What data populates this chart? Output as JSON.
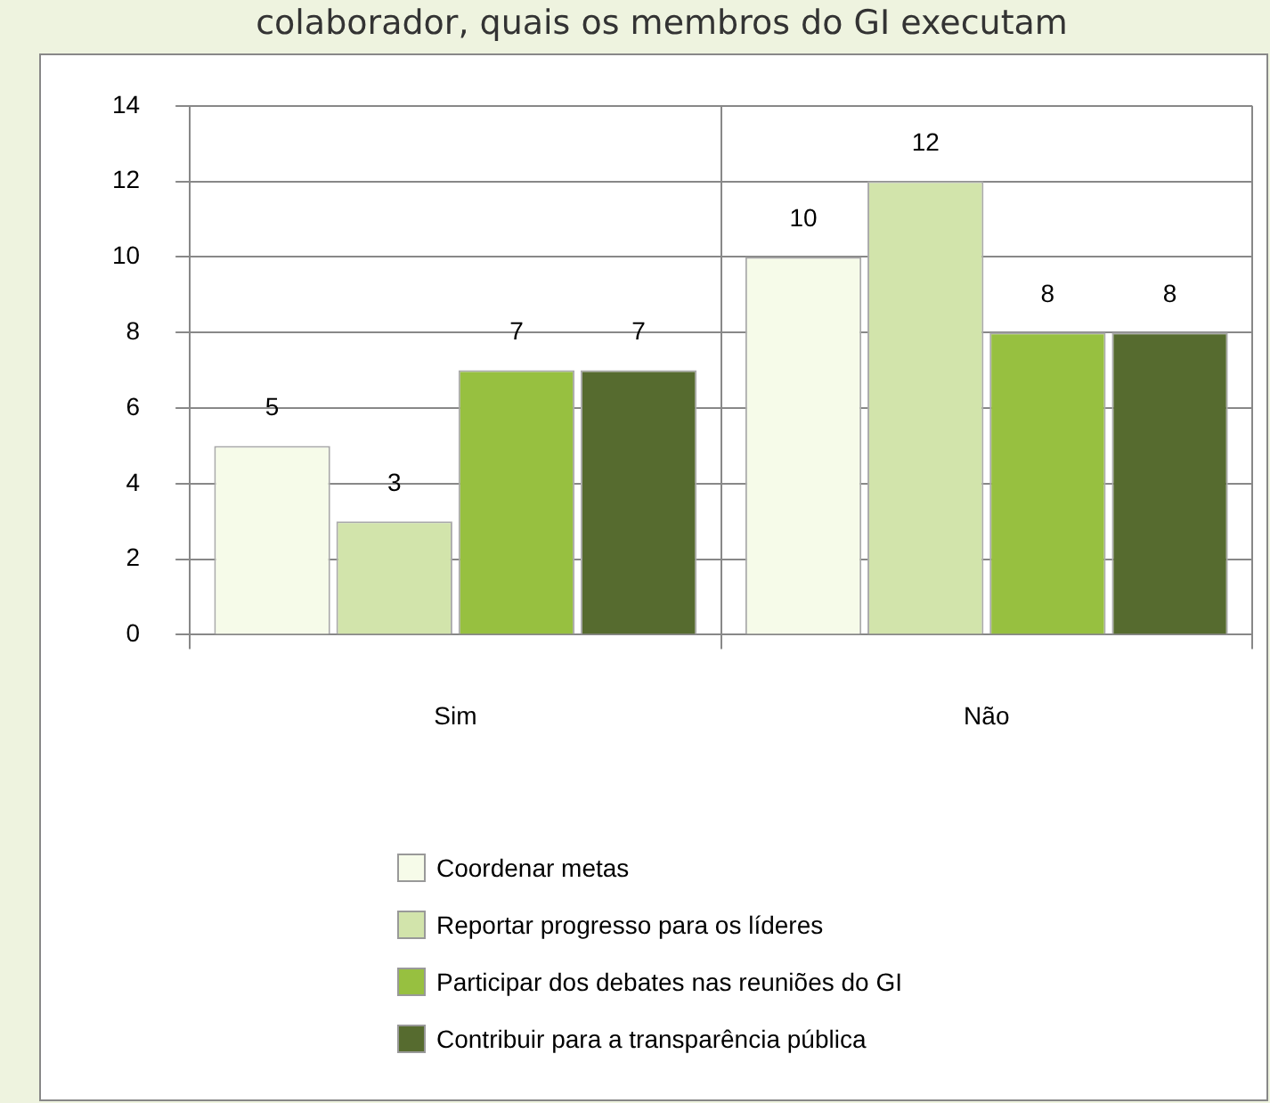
{
  "chart_data": {
    "type": "bar",
    "title": "colaborador, quais os membros do GI executam",
    "categories": [
      "Sim",
      "Não"
    ],
    "series": [
      {
        "name": "Coordenar metas",
        "color": "#f6fbe9",
        "values": [
          5,
          10
        ]
      },
      {
        "name": "Reportar progresso para os líderes",
        "color": "#d2e4ab",
        "values": [
          3,
          12
        ]
      },
      {
        "name": "Participar dos debates nas reuniões do GI",
        "color": "#97c040",
        "values": [
          7,
          8
        ]
      },
      {
        "name": "Contribuir para a transparência pública",
        "color": "#566b2f",
        "values": [
          7,
          8
        ]
      }
    ],
    "ylim": [
      0,
      14
    ],
    "yticks": [
      0,
      2,
      4,
      6,
      8,
      10,
      12,
      14
    ],
    "grid": true,
    "legend": "bottom",
    "data_labels": true
  }
}
